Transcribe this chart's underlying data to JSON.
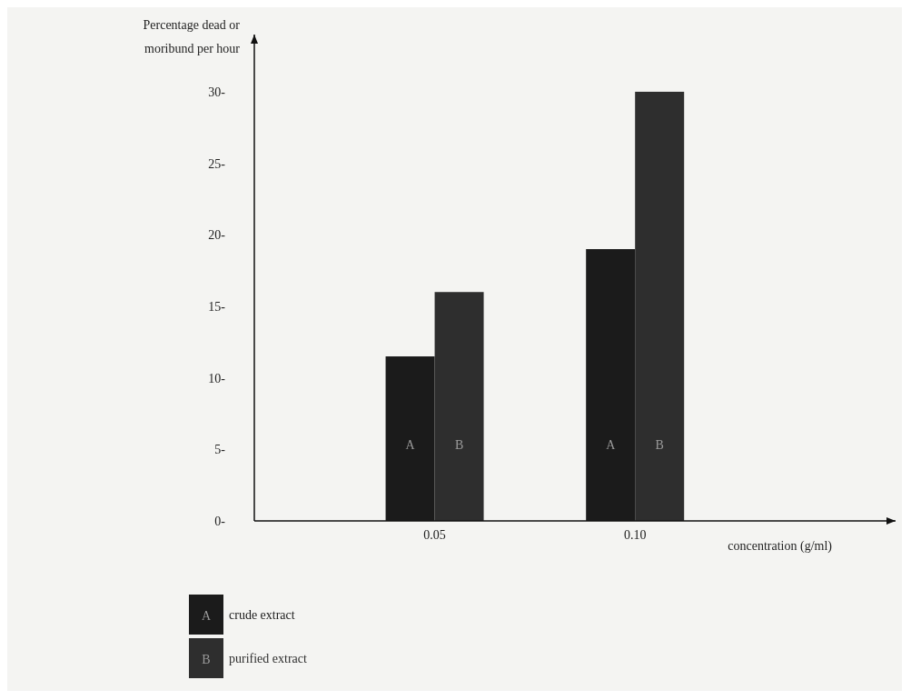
{
  "chart_data": {
    "type": "bar",
    "xlabel": "concentration (g/ml)",
    "ylabel": "Percentage dead or moribund per hour",
    "categories": [
      "0.05",
      "0.10"
    ],
    "series": [
      {
        "name": "crude extract",
        "color": "#1b1b1b",
        "values": [
          11.5,
          19
        ]
      },
      {
        "name": "purified extract",
        "color": "#2e2e2e",
        "values": [
          16,
          30
        ]
      }
    ],
    "ylim": [
      0,
      34
    ],
    "yticks": [
      {
        "value": 0,
        "label": "0-"
      },
      {
        "value": 5,
        "label": "5-"
      },
      {
        "value": 10,
        "label": "10-"
      },
      {
        "value": 15,
        "label": "15-"
      },
      {
        "value": 20,
        "label": "20-"
      },
      {
        "value": 25,
        "label": "25-"
      },
      {
        "value": 30,
        "label": "30-"
      }
    ],
    "grid": false,
    "legend": "bottom left",
    "annotations": [
      {
        "text": "A",
        "x": "0.05",
        "y": 5
      },
      {
        "text": "B",
        "x": "0.05",
        "y": 5
      },
      {
        "text": "A",
        "x": "0.10",
        "y": 5
      },
      {
        "text": "B",
        "x": "0.10",
        "y": 5
      }
    ]
  }
}
